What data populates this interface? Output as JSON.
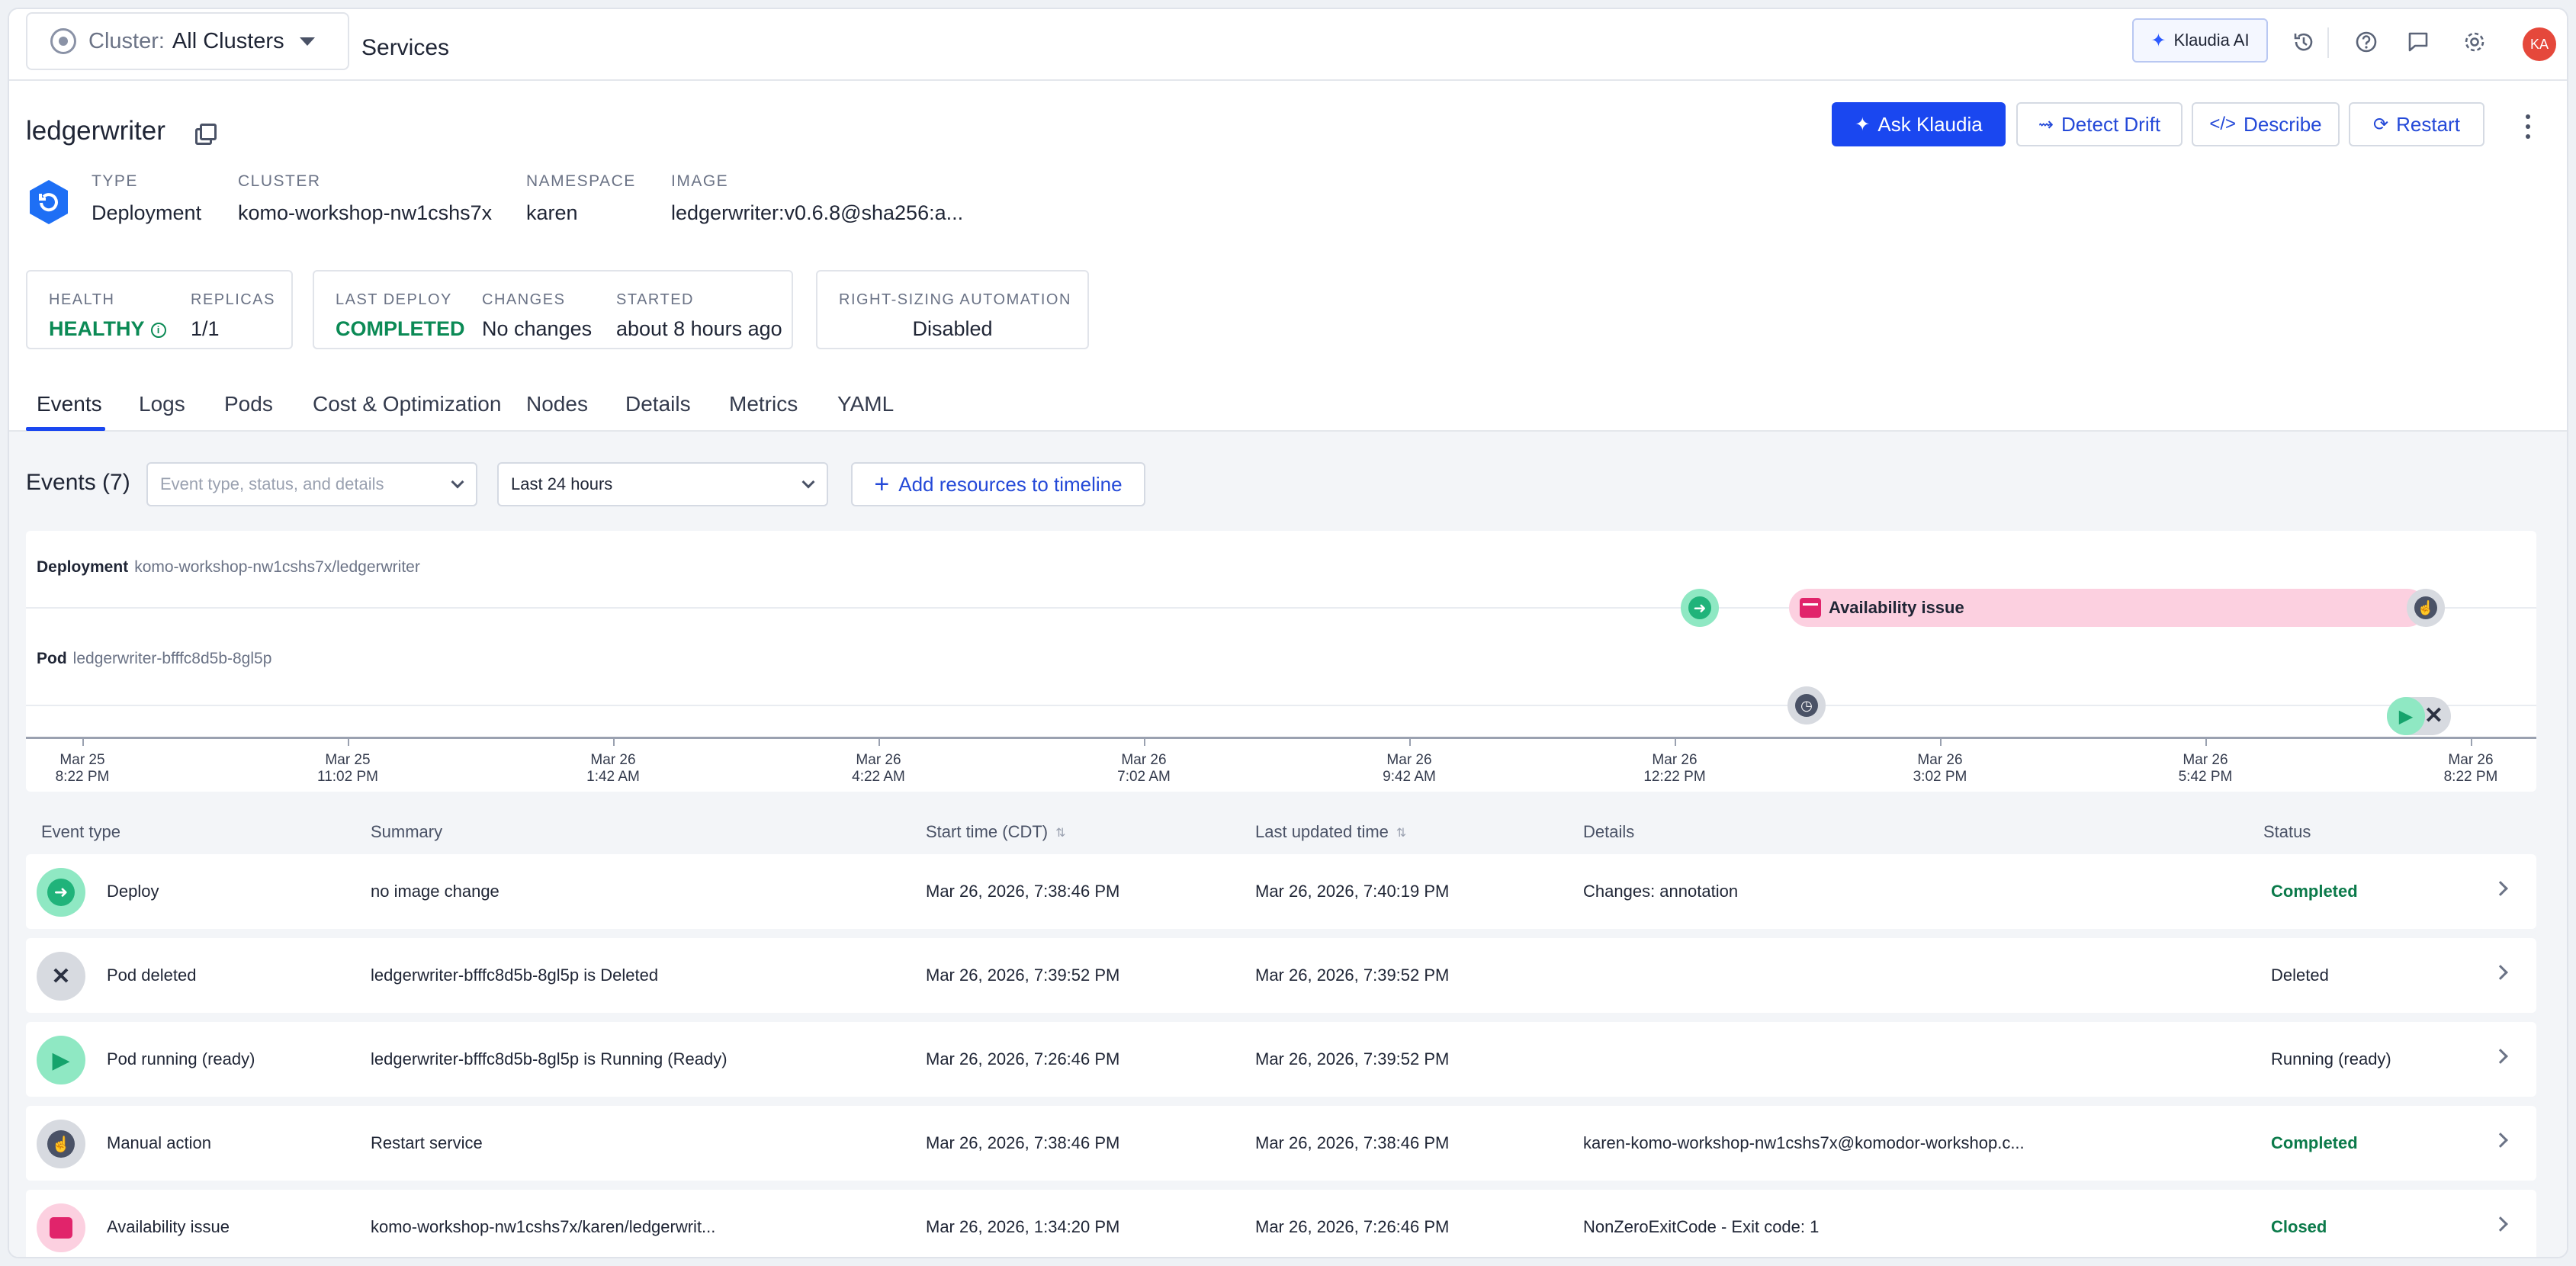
{
  "topbar": {
    "cluster_label": "Cluster:",
    "cluster_value": "All Clusters",
    "breadcrumb": "Services",
    "klaudia_ai": "Klaudia AI",
    "avatar_initials": "KA"
  },
  "header": {
    "title": "ledgerwriter",
    "buttons": {
      "ask": "Ask Klaudia",
      "drift": "Detect Drift",
      "describe": "Describe",
      "restart": "Restart"
    },
    "meta": {
      "type_label": "TYPE",
      "type_value": "Deployment",
      "cluster_label": "CLUSTER",
      "cluster_value": "komo-workshop-nw1cshs7x",
      "namespace_label": "NAMESPACE",
      "namespace_value": "karen",
      "image_label": "IMAGE",
      "image_value": "ledgerwriter:v0.6.8@sha256:a..."
    }
  },
  "cards": {
    "health_label": "HEALTH",
    "health_value": "HEALTHY",
    "replicas_label": "REPLICAS",
    "replicas_value": "1/1",
    "last_deploy_label": "LAST DEPLOY",
    "last_deploy_value": "COMPLETED",
    "changes_label": "CHANGES",
    "changes_value": "No changes",
    "started_label": "STARTED",
    "started_value": "about 8 hours ago",
    "rightsizing_label": "RIGHT-SIZING AUTOMATION",
    "rightsizing_value": "Disabled"
  },
  "tabs": [
    "Events",
    "Logs",
    "Pods",
    "Cost & Optimization",
    "Nodes",
    "Details",
    "Metrics",
    "YAML"
  ],
  "events": {
    "title": "Events (7)",
    "filter_placeholder": "Event type, status, and details",
    "range": "Last 24 hours",
    "add_resources": "Add resources to timeline"
  },
  "timeline": {
    "deployment_label": "Deployment",
    "deployment_path": "komo-workshop-nw1cshs7x/ledgerwriter",
    "pod_label": "Pod",
    "pod_name": "ledgerwriter-bfffc8d5b-8gl5p",
    "availability_label": "Availability issue",
    "ticks": [
      {
        "d": "Mar 25",
        "t": "8:22 PM"
      },
      {
        "d": "Mar 25",
        "t": "11:02 PM"
      },
      {
        "d": "Mar 26",
        "t": "1:42 AM"
      },
      {
        "d": "Mar 26",
        "t": "4:22 AM"
      },
      {
        "d": "Mar 26",
        "t": "7:02 AM"
      },
      {
        "d": "Mar 26",
        "t": "9:42 AM"
      },
      {
        "d": "Mar 26",
        "t": "12:22 PM"
      },
      {
        "d": "Mar 26",
        "t": "3:02 PM"
      },
      {
        "d": "Mar 26",
        "t": "5:42 PM"
      },
      {
        "d": "Mar 26",
        "t": "8:22 PM"
      }
    ]
  },
  "table": {
    "headers": {
      "type": "Event type",
      "summary": "Summary",
      "start": "Start time (CDT)",
      "updated": "Last updated time",
      "details": "Details",
      "status": "Status"
    },
    "rows": [
      {
        "type": "Deploy",
        "summary": "no image change",
        "start": "Mar 26, 2026, 7:38:46 PM",
        "updated": "Mar 26, 2026, 7:40:19 PM",
        "details": "Changes: annotation",
        "status": "Completed"
      },
      {
        "type": "Pod deleted",
        "summary": "ledgerwriter-bfffc8d5b-8gl5p is Deleted",
        "start": "Mar 26, 2026, 7:39:52 PM",
        "updated": "Mar 26, 2026, 7:39:52 PM",
        "details": "",
        "status": "Deleted"
      },
      {
        "type": "Pod running (ready)",
        "summary": "ledgerwriter-bfffc8d5b-8gl5p is Running (Ready)",
        "start": "Mar 26, 2026, 7:26:46 PM",
        "updated": "Mar 26, 2026, 7:39:52 PM",
        "details": "",
        "status": "Running (ready)"
      },
      {
        "type": "Manual action",
        "summary": "Restart service",
        "start": "Mar 26, 2026, 7:38:46 PM",
        "updated": "Mar 26, 2026, 7:38:46 PM",
        "details": "karen-komo-workshop-nw1cshs7x@komodor-workshop.c...",
        "status": "Completed"
      },
      {
        "type": "Availability issue",
        "summary": "komo-workshop-nw1cshs7x/karen/ledgerwrit...",
        "start": "Mar 26, 2026, 1:34:20 PM",
        "updated": "Mar 26, 2026, 7:26:46 PM",
        "details": "NonZeroExitCode - Exit code: 1",
        "status": "Closed"
      }
    ]
  }
}
